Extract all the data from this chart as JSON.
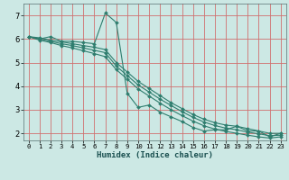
{
  "xlabel": "Humidex (Indice chaleur)",
  "ylabel": "",
  "bg_color": "#cce8e4",
  "line_color": "#2e7d6e",
  "grid_color": "#d07070",
  "xlim": [
    -0.5,
    23.5
  ],
  "ylim": [
    1.7,
    7.5
  ],
  "xticks": [
    0,
    1,
    2,
    3,
    4,
    5,
    6,
    7,
    8,
    9,
    10,
    11,
    12,
    13,
    14,
    15,
    16,
    17,
    18,
    19,
    20,
    21,
    22,
    23
  ],
  "yticks": [
    2,
    3,
    4,
    5,
    6,
    7
  ],
  "lines": [
    {
      "x": [
        0,
        1,
        2,
        3,
        4,
        5,
        6,
        7,
        8,
        9,
        10,
        11,
        12,
        13,
        14,
        15,
        16,
        17,
        18,
        19,
        20,
        21,
        22,
        23
      ],
      "y": [
        6.1,
        6.0,
        6.1,
        5.9,
        5.9,
        5.85,
        5.8,
        7.1,
        6.7,
        3.7,
        3.1,
        3.2,
        2.9,
        2.7,
        2.5,
        2.25,
        2.1,
        2.15,
        2.15,
        2.3,
        2.1,
        2.1,
        1.85,
        2.0
      ]
    },
    {
      "x": [
        0,
        1,
        2,
        3,
        4,
        5,
        6,
        7,
        8,
        9,
        10,
        11,
        12,
        13,
        14,
        15,
        16,
        17,
        18,
        19,
        20,
        21,
        22,
        23
      ],
      "y": [
        6.1,
        6.05,
        5.95,
        5.88,
        5.8,
        5.72,
        5.65,
        5.55,
        5.0,
        4.6,
        4.2,
        3.9,
        3.6,
        3.3,
        3.05,
        2.8,
        2.6,
        2.45,
        2.35,
        2.3,
        2.2,
        2.1,
        2.0,
        2.0
      ]
    },
    {
      "x": [
        0,
        1,
        2,
        3,
        4,
        5,
        6,
        7,
        8,
        9,
        10,
        11,
        12,
        13,
        14,
        15,
        16,
        17,
        18,
        19,
        20,
        21,
        22,
        23
      ],
      "y": [
        6.1,
        6.0,
        5.9,
        5.8,
        5.72,
        5.62,
        5.52,
        5.42,
        4.85,
        4.45,
        4.05,
        3.75,
        3.45,
        3.18,
        2.92,
        2.68,
        2.48,
        2.33,
        2.22,
        2.15,
        2.05,
        1.98,
        1.9,
        1.92
      ]
    },
    {
      "x": [
        0,
        1,
        2,
        3,
        4,
        5,
        6,
        7,
        8,
        9,
        10,
        11,
        12,
        13,
        14,
        15,
        16,
        17,
        18,
        19,
        20,
        21,
        22,
        23
      ],
      "y": [
        6.1,
        5.95,
        5.85,
        5.72,
        5.62,
        5.5,
        5.38,
        5.25,
        4.7,
        4.3,
        3.88,
        3.58,
        3.28,
        3.0,
        2.75,
        2.52,
        2.32,
        2.18,
        2.08,
        2.0,
        1.92,
        1.85,
        1.8,
        1.85
      ]
    }
  ]
}
